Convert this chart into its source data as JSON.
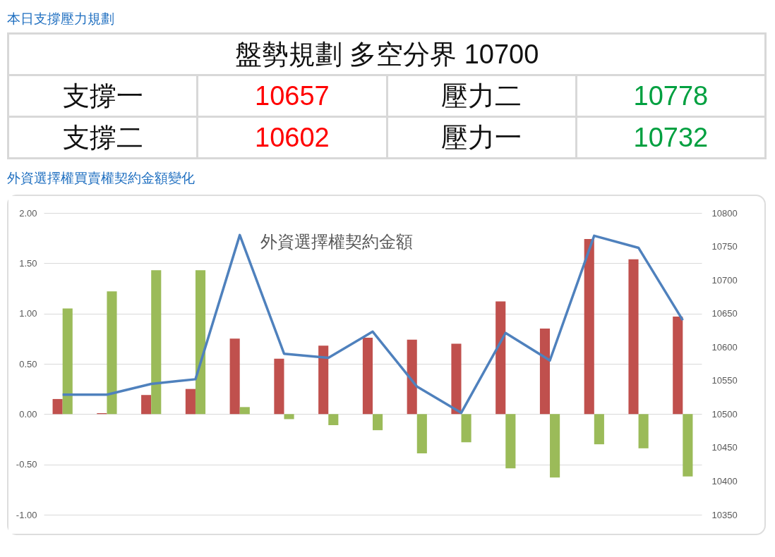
{
  "chart_data": [
    {
      "type": "other",
      "title": "本日支撐壓力規劃",
      "annotations": [
        "盤勢規劃 多空分界 10700",
        "支撐一",
        "10657",
        "壓力二",
        "10778",
        "支撐二",
        "10602",
        "壓力一",
        "10732"
      ]
    },
    {
      "type": "bar",
      "title": "外資選擇權買賣權契約金額變化",
      "annotations": [
        "外資選擇權契約金額"
      ],
      "categories": [
        null,
        null,
        null,
        null,
        null,
        null,
        null,
        null,
        null,
        null,
        null,
        null,
        null,
        null,
        null
      ],
      "series": [
        {
          "color": "#c0504d",
          "values": [
            0.15,
            0.01,
            0.19,
            0.25,
            0.75,
            0.55,
            0.68,
            0.76,
            0.74,
            0.7,
            1.12,
            0.85,
            1.74,
            1.54,
            0.97
          ]
        },
        {
          "color": "#9bbb59",
          "values": [
            1.05,
            1.22,
            1.43,
            1.43,
            0.07,
            -0.05,
            -0.11,
            -0.16,
            -0.39,
            -0.28,
            -0.54,
            -0.63,
            -0.3,
            -0.34,
            -0.62
          ]
        },
        {
          "type": "line",
          "axis": "y2",
          "color": "#4f81bd",
          "values": [
            10529,
            10529,
            10545,
            10552,
            10767,
            10590,
            10584,
            10623,
            10541,
            10502,
            10621,
            10580,
            10766,
            10748,
            10640
          ]
        }
      ],
      "ylim": [
        -1,
        2
      ],
      "yticks": [
        {
          "value": -1,
          "label": "-1.00"
        },
        {
          "value": -0.5,
          "label": "-0.50"
        },
        {
          "value": 0,
          "label": "0.00"
        },
        {
          "value": 0.5,
          "label": "0.50"
        },
        {
          "value": 1,
          "label": "1.00"
        },
        {
          "value": 1.5,
          "label": "1.50"
        },
        {
          "value": 2,
          "label": "2.00"
        }
      ],
      "y2lim": [
        10350,
        10800
      ],
      "y2ticks": [
        10350,
        10400,
        10450,
        10500,
        10550,
        10600,
        10650,
        10700,
        10750,
        10800
      ],
      "grid": "y",
      "legend": false
    }
  ]
}
